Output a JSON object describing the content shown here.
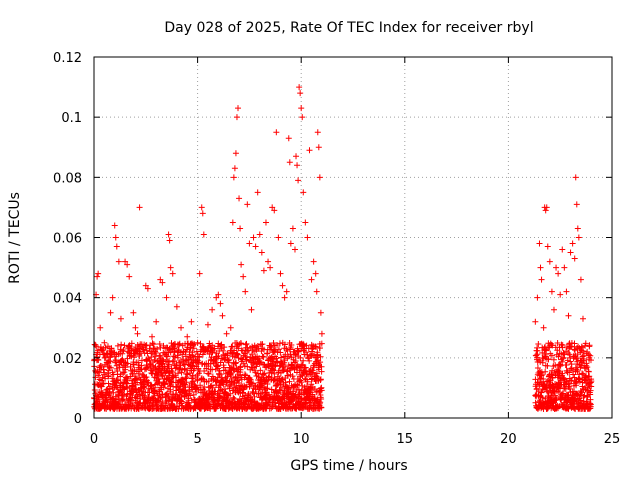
{
  "chart_data": {
    "type": "scatter",
    "title": "Day 028 of 2025, Rate Of TEC Index for receiver rbyl",
    "xlabel": "GPS time / hours",
    "ylabel": "ROTI / TECUs",
    "xlim": [
      0,
      25
    ],
    "ylim": [
      0,
      0.12
    ],
    "x_ticks": [
      0,
      5,
      10,
      15,
      20,
      25
    ],
    "x_tick_labels": [
      "0",
      "5",
      "10",
      "15",
      "20",
      "25"
    ],
    "y_ticks": [
      0,
      0.02,
      0.04,
      0.06,
      0.08,
      0.1,
      0.12
    ],
    "y_tick_labels": [
      "0",
      "0.02",
      "0.04",
      "0.06",
      "0.08",
      "0.1",
      "0.12"
    ],
    "grid": true,
    "marker": "+",
    "color": "#ff0000",
    "data_gap_hours": [
      11.0,
      21.3
    ],
    "series": [
      {
        "name": "ROTI",
        "points": [
          [
            0.15,
            0.047
          ],
          [
            0.2,
            0.048
          ],
          [
            0.1,
            0.041
          ],
          [
            0.3,
            0.03
          ],
          [
            0.5,
            0.025
          ],
          [
            0.8,
            0.035
          ],
          [
            0.9,
            0.04
          ],
          [
            1.0,
            0.064
          ],
          [
            1.05,
            0.06
          ],
          [
            1.1,
            0.057
          ],
          [
            1.2,
            0.052
          ],
          [
            1.3,
            0.033
          ],
          [
            1.5,
            0.052
          ],
          [
            1.6,
            0.051
          ],
          [
            1.7,
            0.047
          ],
          [
            1.9,
            0.035
          ],
          [
            2.0,
            0.03
          ],
          [
            2.1,
            0.028
          ],
          [
            2.2,
            0.07
          ],
          [
            2.5,
            0.044
          ],
          [
            2.6,
            0.043
          ],
          [
            2.8,
            0.027
          ],
          [
            3.0,
            0.032
          ],
          [
            3.2,
            0.046
          ],
          [
            3.3,
            0.045
          ],
          [
            3.5,
            0.04
          ],
          [
            3.6,
            0.061
          ],
          [
            3.65,
            0.059
          ],
          [
            3.7,
            0.05
          ],
          [
            3.8,
            0.048
          ],
          [
            4.0,
            0.037
          ],
          [
            4.2,
            0.03
          ],
          [
            4.5,
            0.027
          ],
          [
            4.7,
            0.032
          ],
          [
            5.0,
            0.025
          ],
          [
            5.1,
            0.048
          ],
          [
            5.2,
            0.07
          ],
          [
            5.25,
            0.068
          ],
          [
            5.3,
            0.061
          ],
          [
            5.5,
            0.031
          ],
          [
            5.7,
            0.036
          ],
          [
            5.9,
            0.04
          ],
          [
            6.0,
            0.041
          ],
          [
            6.1,
            0.038
          ],
          [
            6.2,
            0.034
          ],
          [
            6.4,
            0.028
          ],
          [
            6.6,
            0.03
          ],
          [
            6.7,
            0.065
          ],
          [
            6.75,
            0.08
          ],
          [
            6.8,
            0.083
          ],
          [
            6.85,
            0.088
          ],
          [
            6.9,
            0.1
          ],
          [
            6.95,
            0.103
          ],
          [
            7.0,
            0.073
          ],
          [
            7.05,
            0.063
          ],
          [
            7.1,
            0.051
          ],
          [
            7.2,
            0.047
          ],
          [
            7.3,
            0.042
          ],
          [
            7.4,
            0.071
          ],
          [
            7.5,
            0.058
          ],
          [
            7.6,
            0.036
          ],
          [
            7.7,
            0.06
          ],
          [
            7.8,
            0.057
          ],
          [
            7.9,
            0.075
          ],
          [
            8.0,
            0.061
          ],
          [
            8.1,
            0.055
          ],
          [
            8.2,
            0.049
          ],
          [
            8.3,
            0.065
          ],
          [
            8.4,
            0.052
          ],
          [
            8.5,
            0.05
          ],
          [
            8.6,
            0.07
          ],
          [
            8.7,
            0.069
          ],
          [
            8.8,
            0.095
          ],
          [
            8.9,
            0.06
          ],
          [
            9.0,
            0.048
          ],
          [
            9.1,
            0.044
          ],
          [
            9.2,
            0.04
          ],
          [
            9.3,
            0.042
          ],
          [
            9.4,
            0.093
          ],
          [
            9.45,
            0.085
          ],
          [
            9.5,
            0.058
          ],
          [
            9.6,
            0.063
          ],
          [
            9.7,
            0.056
          ],
          [
            9.75,
            0.087
          ],
          [
            9.8,
            0.084
          ],
          [
            9.85,
            0.079
          ],
          [
            9.9,
            0.11
          ],
          [
            9.95,
            0.108
          ],
          [
            10.0,
            0.103
          ],
          [
            10.05,
            0.1
          ],
          [
            10.1,
            0.075
          ],
          [
            10.2,
            0.065
          ],
          [
            10.3,
            0.06
          ],
          [
            10.4,
            0.089
          ],
          [
            10.5,
            0.046
          ],
          [
            10.6,
            0.052
          ],
          [
            10.7,
            0.048
          ],
          [
            10.75,
            0.042
          ],
          [
            10.8,
            0.095
          ],
          [
            10.85,
            0.09
          ],
          [
            10.9,
            0.08
          ],
          [
            10.95,
            0.035
          ],
          [
            11.0,
            0.028
          ],
          [
            21.3,
            0.032
          ],
          [
            21.4,
            0.04
          ],
          [
            21.5,
            0.058
          ],
          [
            21.55,
            0.05
          ],
          [
            21.6,
            0.046
          ],
          [
            21.7,
            0.03
          ],
          [
            21.75,
            0.07
          ],
          [
            21.8,
            0.069
          ],
          [
            21.85,
            0.07
          ],
          [
            21.9,
            0.057
          ],
          [
            22.0,
            0.052
          ],
          [
            22.1,
            0.042
          ],
          [
            22.2,
            0.036
          ],
          [
            22.3,
            0.05
          ],
          [
            22.4,
            0.048
          ],
          [
            22.5,
            0.041
          ],
          [
            22.6,
            0.056
          ],
          [
            22.7,
            0.05
          ],
          [
            22.8,
            0.042
          ],
          [
            22.9,
            0.034
          ],
          [
            23.0,
            0.055
          ],
          [
            23.1,
            0.058
          ],
          [
            23.2,
            0.053
          ],
          [
            23.25,
            0.08
          ],
          [
            23.3,
            0.071
          ],
          [
            23.35,
            0.063
          ],
          [
            23.4,
            0.06
          ],
          [
            23.5,
            0.046
          ],
          [
            23.6,
            0.033
          ],
          [
            23.7,
            0.024
          ],
          [
            23.8,
            0.022
          ],
          [
            23.9,
            0.02
          ]
        ],
        "dense_band": {
          "description": "approximately continuous scatter of low-level ROTI values",
          "ranges_hours": [
            [
              0,
              11.0
            ],
            [
              21.3,
              24.0
            ]
          ],
          "typical_range": [
            0.003,
            0.025
          ],
          "sample_interval_hours": 0.005
        }
      }
    ]
  }
}
